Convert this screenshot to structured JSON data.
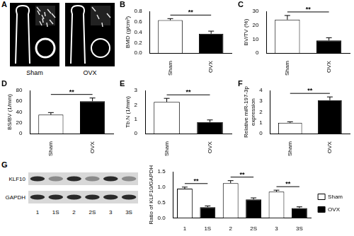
{
  "images": {
    "panel": "A",
    "labels": [
      "Sham",
      "OVX"
    ]
  },
  "chart_data": [
    {
      "type": "bar",
      "panel": "B",
      "y_label": "BMD (g/cm³)",
      "categories": [
        "Sham",
        "OVX"
      ],
      "values": [
        0.63,
        0.37
      ],
      "errors": [
        0.03,
        0.05
      ],
      "colors": [
        "#ffffff",
        "#000000"
      ],
      "ylim": [
        0,
        0.8
      ],
      "yticks": [
        {
          "value": 0,
          "label": "0.0"
        },
        0.2,
        0.4,
        0.6,
        0.8
      ],
      "grid": false,
      "annotations": [
        {
          "text": "**",
          "between": [
            "Sham",
            "OVX"
          ]
        }
      ]
    },
    {
      "type": "bar",
      "panel": "C",
      "y_label": "BV/TV (%)",
      "categories": [
        "Sham",
        "OVX"
      ],
      "values": [
        24,
        9
      ],
      "errors": [
        3,
        2
      ],
      "colors": [
        "#ffffff",
        "#000000"
      ],
      "ylim": [
        0,
        30
      ],
      "yticks": [
        0,
        10,
        20,
        30
      ],
      "grid": false,
      "annotations": [
        {
          "text": "**",
          "between": [
            "Sham",
            "OVX"
          ]
        }
      ]
    },
    {
      "type": "bar",
      "panel": "D",
      "y_label": "BS/BV (1/mm)",
      "categories": [
        "Sham",
        "OVX"
      ],
      "values": [
        35,
        60
      ],
      "errors": [
        4,
        6
      ],
      "colors": [
        "#ffffff",
        "#000000"
      ],
      "ylim": [
        0,
        80
      ],
      "yticks": [
        0,
        20,
        40,
        60,
        80
      ],
      "grid": false,
      "annotations": [
        {
          "text": "**",
          "between": [
            "Sham",
            "OVX"
          ]
        }
      ]
    },
    {
      "type": "bar",
      "panel": "E",
      "y_label": "Tb.N (1/mm)",
      "categories": [
        "Sham",
        "OVX"
      ],
      "values": [
        2.2,
        0.8
      ],
      "errors": [
        0.25,
        0.15
      ],
      "colors": [
        "#ffffff",
        "#000000"
      ],
      "ylim": [
        0,
        3
      ],
      "yticks": [
        0,
        1,
        2,
        3
      ],
      "grid": false,
      "annotations": [
        {
          "text": "**",
          "between": [
            "Sham",
            "OVX"
          ]
        }
      ]
    },
    {
      "type": "bar",
      "panel": "F",
      "y_label": [
        "Relative miR-197-3p",
        "expression"
      ],
      "categories": [
        "Sham",
        "OVX"
      ],
      "values": [
        1.0,
        3.1
      ],
      "errors": [
        0.1,
        0.3
      ],
      "colors": [
        "#ffffff",
        "#000000"
      ],
      "ylim": [
        0,
        4
      ],
      "yticks": [
        0,
        1,
        2,
        3,
        4
      ],
      "grid": false,
      "annotations": [
        {
          "text": "**",
          "between": [
            "Sham",
            "OVX"
          ]
        }
      ]
    },
    {
      "type": "bar",
      "y_label": "Ratio of KLF10/GAPDH",
      "categories": [
        "1",
        "1S",
        "2",
        "2S",
        "3",
        "3S"
      ],
      "series": [
        {
          "name": "Sham",
          "color": "#ffffff",
          "values": [
            0.95,
            null,
            1.13,
            null,
            0.85,
            null
          ],
          "errors": [
            0.05,
            null,
            0.08,
            null,
            0.05,
            null
          ]
        },
        {
          "name": "OVX",
          "color": "#000000",
          "values": [
            null,
            0.35,
            null,
            0.6,
            null,
            0.32
          ],
          "errors": [
            null,
            0.04,
            null,
            0.05,
            null,
            0.04
          ]
        }
      ],
      "ylim": [
        0,
        1.5
      ],
      "yticks": [
        {
          "value": 0,
          "label": "0.0"
        },
        0.5,
        {
          "value": 1,
          "label": "1.0"
        },
        1.5
      ],
      "grid": false,
      "legend": "right",
      "annotations": [
        {
          "text": "**",
          "between": [
            "1",
            "1S"
          ]
        },
        {
          "text": "**",
          "between": [
            "2",
            "2S"
          ]
        },
        {
          "text": "**",
          "between": [
            "3",
            "3S"
          ]
        }
      ]
    }
  ],
  "blot": {
    "panel": "G",
    "rows": [
      "KLF10",
      "GAPDH"
    ],
    "lanes": [
      "1",
      "1S",
      "2",
      "2S",
      "3",
      "3S"
    ]
  }
}
